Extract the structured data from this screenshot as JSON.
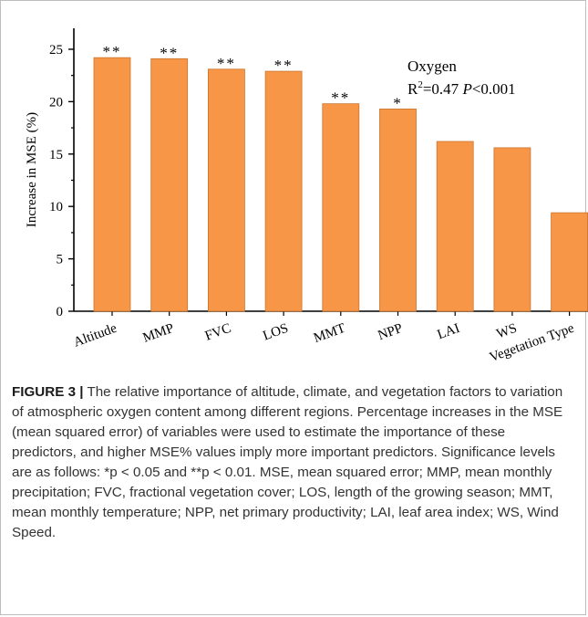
{
  "chart_data": {
    "type": "bar",
    "categories": [
      "Altitude",
      "MMP",
      "FVC",
      "LOS",
      "MMT",
      "NPP",
      "LAI",
      "WS",
      "Vegetation Type"
    ],
    "values": [
      24.2,
      24.1,
      23.1,
      22.9,
      19.8,
      19.3,
      16.2,
      15.6,
      9.4
    ],
    "significance": [
      "**",
      "**",
      "**",
      "**",
      "**",
      "*",
      "",
      "",
      ""
    ],
    "ylabel": "Increase in MSE (%)",
    "ylim": [
      0,
      27
    ],
    "yticks": [
      0,
      5,
      10,
      15,
      20,
      25
    ],
    "bar_color": "#F79646",
    "annotation": {
      "line1": "Oxygen",
      "r_label": "R",
      "r_exp": "2",
      "r_value": "=0.47 ",
      "p_label": "P",
      "p_value": "<0.001"
    },
    "grid": false
  },
  "caption": {
    "label": "FIGURE 3 |",
    "text": " The relative importance of altitude, climate, and vegetation factors to variation of atmospheric oxygen content among different regions. Percentage increases in the MSE (mean squared error) of variables were used to estimate the importance of these predictors, and higher MSE% values imply more important predictors. Significance levels are as follows: *p < 0.05 and **p < 0.01. MSE, mean squared error; MMP, mean monthly precipitation; FVC, fractional vegetation cover; LOS, length of the growing season; MMT, mean monthly temperature; NPP, net primary productivity; LAI, leaf area index; WS, Wind Speed."
  }
}
